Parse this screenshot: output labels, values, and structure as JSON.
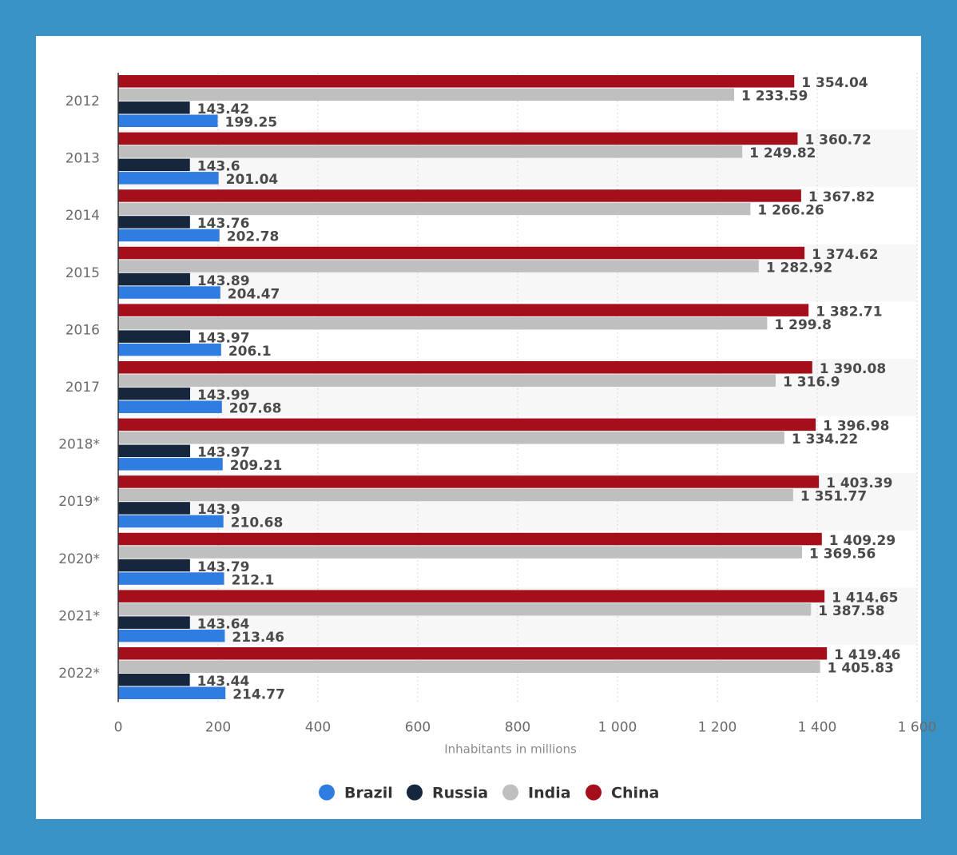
{
  "chart_data": {
    "type": "bar",
    "orientation": "horizontal",
    "categories": [
      "2012",
      "2013",
      "2014",
      "2015",
      "2016",
      "2017",
      "2018*",
      "2019*",
      "2020*",
      "2021*",
      "2022*"
    ],
    "series": [
      {
        "name": "China",
        "color": "#a50f1c",
        "values": [
          1354.04,
          1360.72,
          1367.82,
          1374.62,
          1382.71,
          1390.08,
          1396.98,
          1403.39,
          1409.29,
          1414.65,
          1419.46
        ],
        "labels": [
          "1 354.04",
          "1 360.72",
          "1 367.82",
          "1 374.62",
          "1 382.71",
          "1 390.08",
          "1 396.98",
          "1 403.39",
          "1 409.29",
          "1 414.65",
          "1 419.46"
        ]
      },
      {
        "name": "India",
        "color": "#bfbfbf",
        "values": [
          1233.59,
          1249.82,
          1266.26,
          1282.92,
          1299.8,
          1316.9,
          1334.22,
          1351.77,
          1369.56,
          1387.58,
          1405.83
        ],
        "labels": [
          "1 233.59",
          "1 249.82",
          "1 266.26",
          "1 282.92",
          "1 299.8",
          "1 316.9",
          "1 334.22",
          "1 351.77",
          "1 369.56",
          "1 387.58",
          "1 405.83"
        ]
      },
      {
        "name": "Russia",
        "color": "#15263d",
        "values": [
          143.42,
          143.6,
          143.76,
          143.89,
          143.97,
          143.99,
          143.97,
          143.9,
          143.79,
          143.64,
          143.44
        ],
        "labels": [
          "143.42",
          "143.6",
          "143.76",
          "143.89",
          "143.97",
          "143.99",
          "143.97",
          "143.9",
          "143.79",
          "143.64",
          "143.44"
        ]
      },
      {
        "name": "Brazil",
        "color": "#2f7de1",
        "values": [
          199.25,
          201.04,
          202.78,
          204.47,
          206.1,
          207.68,
          209.21,
          210.68,
          212.1,
          213.46,
          214.77
        ],
        "labels": [
          "199.25",
          "201.04",
          "202.78",
          "204.47",
          "206.1",
          "207.68",
          "209.21",
          "210.68",
          "212.1",
          "213.46",
          "214.77"
        ]
      }
    ],
    "xlabel": "Inhabitants in millions",
    "xlim": [
      0,
      1600
    ],
    "ticks": [
      0,
      200,
      400,
      600,
      800,
      1000,
      1200,
      1400,
      1600
    ],
    "tick_labels": [
      "0",
      "200",
      "400",
      "600",
      "800",
      "1 000",
      "1 200",
      "1 400",
      "1 600"
    ],
    "grid": true,
    "legend": {
      "position": "bottom-center",
      "items": [
        {
          "name": "Brazil",
          "color": "#2f7de1"
        },
        {
          "name": "Russia",
          "color": "#15263d"
        },
        {
          "name": "India",
          "color": "#bfbfbf"
        },
        {
          "name": "China",
          "color": "#a50f1c"
        }
      ]
    }
  }
}
